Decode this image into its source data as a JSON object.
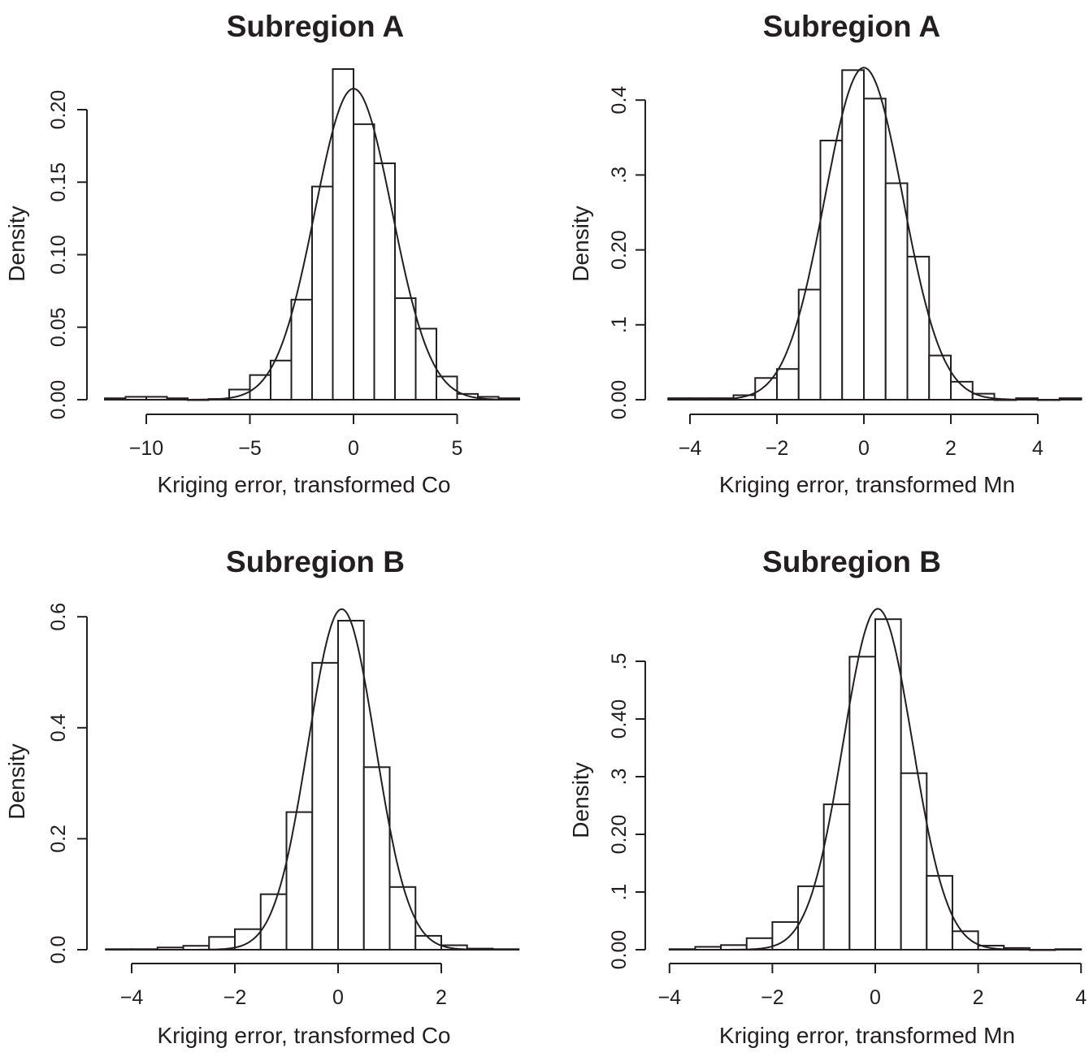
{
  "chart_data": [
    {
      "type": "bar",
      "subtype": "histogram",
      "title": "Subregion A",
      "xlabel": "Kriging error, transformed Co",
      "ylabel": "Density",
      "x_ticks": [
        -10,
        -5,
        0,
        5
      ],
      "x_tick_labels": [
        "−10",
        "−5",
        "0",
        "5"
      ],
      "y_ticks": [
        0,
        0.05,
        0.1,
        0.15,
        0.2
      ],
      "y_tick_labels": [
        "0.00",
        "0.05",
        "0.10",
        "0.15",
        "0.20"
      ],
      "bin_start": -12,
      "bin_width": 1,
      "values": [
        0.001,
        0.002,
        0.002,
        0.001,
        0.0,
        0.0005,
        0.007,
        0.017,
        0.027,
        0.069,
        0.147,
        0.228,
        0.19,
        0.163,
        0.07,
        0.049,
        0.016,
        0.004,
        0.002,
        0.001
      ],
      "normal_fit": {
        "mean": 0,
        "sd": 1.86
      },
      "xlim": [
        -12,
        8
      ],
      "ylim": [
        0,
        0.23
      ],
      "grid": false
    },
    {
      "type": "bar",
      "subtype": "histogram",
      "title": "Subregion A",
      "xlabel": "Kriging error, transformed Mn",
      "ylabel": "Density",
      "x_ticks": [
        -4,
        -2,
        0,
        2,
        4
      ],
      "x_tick_labels": [
        "−4",
        "−2",
        "0",
        "2",
        "4"
      ],
      "y_ticks": [
        0,
        0.1,
        0.2,
        0.3,
        0.4
      ],
      "y_tick_labels": [
        "0.00",
        ".1",
        "0.20",
        ".3",
        "0.4"
      ],
      "bin_start": -4.5,
      "bin_width": 0.5,
      "values": [
        0.002,
        0.002,
        0.002,
        0.006,
        0.029,
        0.041,
        0.147,
        0.346,
        0.44,
        0.402,
        0.289,
        0.191,
        0.059,
        0.024,
        0.008,
        0.0,
        0.002,
        0.0,
        0.002
      ],
      "normal_fit": {
        "mean": 0,
        "sd": 0.9
      },
      "xlim": [
        -4.5,
        5
      ],
      "ylim": [
        0,
        0.45
      ],
      "grid": false
    },
    {
      "type": "bar",
      "subtype": "histogram",
      "title": "Subregion B",
      "xlabel": "Kriging error, transformed Co",
      "ylabel": "Density",
      "x_ticks": [
        -4,
        -2,
        0,
        2
      ],
      "x_tick_labels": [
        "−4",
        "−2",
        "0",
        "2"
      ],
      "y_ticks": [
        0,
        0.2,
        0.4,
        0.6
      ],
      "y_tick_labels": [
        "0.0",
        "0.2",
        "0.4",
        "0.6"
      ],
      "bin_start": -4.5,
      "bin_width": 0.5,
      "values": [
        0.001,
        0.001,
        0.004,
        0.007,
        0.023,
        0.037,
        0.1,
        0.248,
        0.517,
        0.593,
        0.329,
        0.113,
        0.025,
        0.008,
        0.002,
        0.001
      ],
      "normal_fit": {
        "mean": 0.07,
        "sd": 0.65
      },
      "xlim": [
        -4.5,
        3.5
      ],
      "ylim": [
        0,
        0.62
      ],
      "grid": false
    },
    {
      "type": "bar",
      "subtype": "histogram",
      "title": "Subregion B",
      "xlabel": "Kriging error, transformed Mn",
      "ylabel": "Density",
      "x_ticks": [
        -4,
        -2,
        0,
        2,
        4
      ],
      "x_tick_labels": [
        "−4",
        "−2",
        "0",
        "2",
        "4"
      ],
      "y_ticks": [
        0,
        0.1,
        0.2,
        0.3,
        0.4,
        0.5
      ],
      "y_tick_labels": [
        "0.00",
        ".1",
        "0.20",
        ".3",
        "0.40",
        ".5"
      ],
      "bin_start": -4,
      "bin_width": 0.5,
      "values": [
        0.001,
        0.005,
        0.008,
        0.02,
        0.048,
        0.11,
        0.252,
        0.508,
        0.573,
        0.306,
        0.128,
        0.032,
        0.007,
        0.003,
        0.0,
        0.001
      ],
      "normal_fit": {
        "mean": 0.05,
        "sd": 0.675
      },
      "xlim": [
        -4,
        4
      ],
      "ylim": [
        0,
        0.6
      ],
      "grid": false
    }
  ]
}
